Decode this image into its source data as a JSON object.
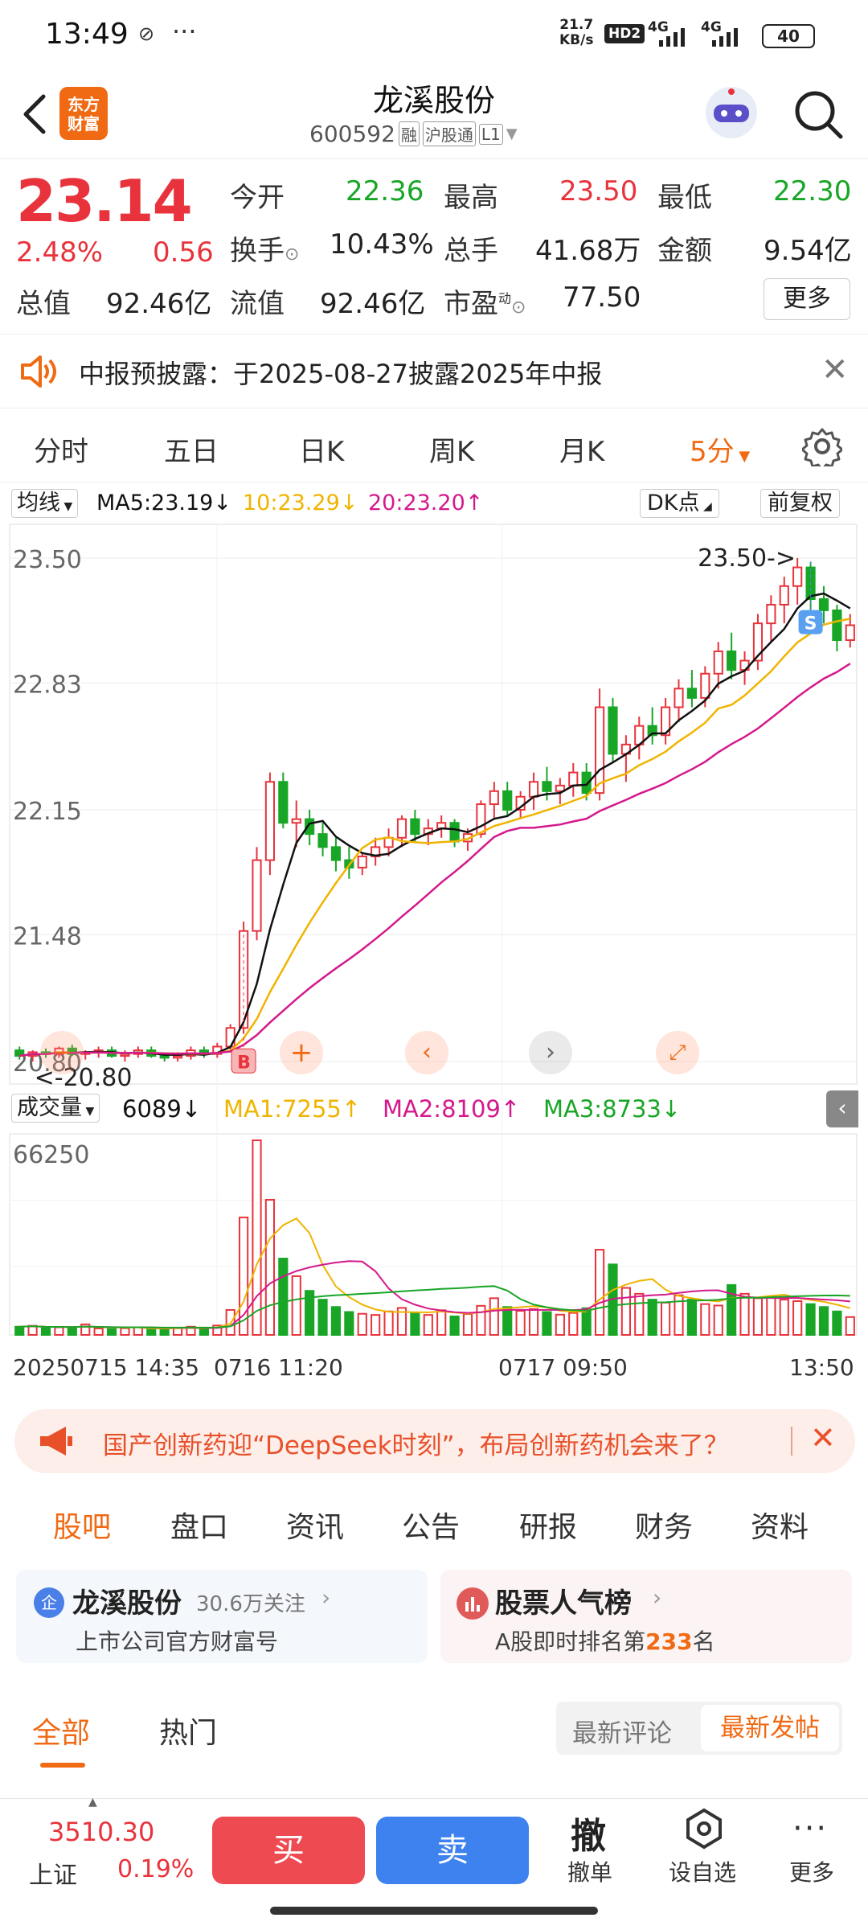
{
  "status": {
    "time": "13:49",
    "speed_value": "21.7",
    "speed_unit": "KB/s",
    "hd": "HD2",
    "net1": "4G",
    "net2": "4G",
    "battery": "40"
  },
  "nav": {
    "logo_line1": "东方",
    "logo_line2": "财富",
    "title": "龙溪股份",
    "code": "600592",
    "tag_rong": "融",
    "tag_hgt": "沪股通",
    "tag_l1": "L1"
  },
  "quote": {
    "price": "23.14",
    "pct": "2.48%",
    "change": "0.56",
    "open_label": "今开",
    "open": "22.36",
    "high_label": "最高",
    "high": "23.50",
    "low_label": "最低",
    "low": "22.30",
    "turnover_label": "换手",
    "turnover": "10.43%",
    "volume_label": "总手",
    "volume": "41.68万",
    "amount_label": "金额",
    "amount": "9.54亿",
    "mcap_label": "总值",
    "mcap": "92.46亿",
    "float_label": "流值",
    "float": "92.46亿",
    "pe_label": "市盈",
    "pe_sup": "动",
    "pe": "77.50",
    "more": "更多"
  },
  "notice": {
    "text": "中报预披露：于2025-08-27披露2025年中报"
  },
  "tabs": {
    "items": [
      "分时",
      "五日",
      "日K",
      "周K",
      "月K",
      "5分"
    ]
  },
  "chart_header": {
    "ma_select": "均线",
    "ma5": "MA5:23.19",
    "ma10": "10:23.29",
    "ma20": "20:23.20",
    "dk": "DK点",
    "fq": "前复权"
  },
  "vol_header": {
    "select": "成交量",
    "vol": "6089",
    "ma1": "MA1:7255",
    "ma2": "MA2:8109",
    "ma3": "MA3:8733"
  },
  "chart_data": {
    "type": "candlestick",
    "price_axis": {
      "ticks": [
        "23.50",
        "22.83",
        "22.15",
        "21.48",
        "20.80"
      ],
      "range": [
        20.8,
        23.5
      ]
    },
    "annotations": {
      "high": "23.50->",
      "low": "<-20.80",
      "buy": "B",
      "sell": "S"
    },
    "volume_axis": {
      "max_label": "66250",
      "range": [
        0,
        66250
      ]
    },
    "time_labels": [
      "20250715 14:35",
      "0716 11:20",
      "0717 09:50",
      "13:50"
    ],
    "candles_ohlc": [
      [
        20.86,
        20.88,
        20.81,
        20.83
      ],
      [
        20.83,
        20.86,
        20.8,
        20.85
      ],
      [
        20.85,
        20.87,
        20.82,
        20.84
      ],
      [
        20.84,
        20.88,
        20.82,
        20.87
      ],
      [
        20.87,
        20.89,
        20.83,
        20.84
      ],
      [
        20.84,
        20.86,
        20.81,
        20.85
      ],
      [
        20.85,
        20.88,
        20.82,
        20.86
      ],
      [
        20.86,
        20.88,
        20.82,
        20.83
      ],
      [
        20.83,
        20.86,
        20.8,
        20.84
      ],
      [
        20.84,
        20.88,
        20.82,
        20.86
      ],
      [
        20.86,
        20.88,
        20.82,
        20.83
      ],
      [
        20.83,
        20.85,
        20.8,
        20.82
      ],
      [
        20.82,
        20.85,
        20.8,
        20.83
      ],
      [
        20.83,
        20.88,
        20.81,
        20.86
      ],
      [
        20.86,
        20.88,
        20.82,
        20.84
      ],
      [
        20.84,
        20.9,
        20.82,
        20.88
      ],
      [
        20.88,
        21.0,
        20.85,
        20.98
      ],
      [
        20.98,
        21.55,
        20.95,
        21.5
      ],
      [
        21.5,
        21.95,
        21.45,
        21.88
      ],
      [
        21.88,
        22.35,
        21.8,
        22.3
      ],
      [
        22.3,
        22.35,
        22.05,
        22.08
      ],
      [
        22.08,
        22.2,
        21.95,
        22.1
      ],
      [
        22.1,
        22.15,
        21.96,
        22.02
      ],
      [
        22.02,
        22.08,
        21.9,
        21.95
      ],
      [
        21.95,
        22.0,
        21.82,
        21.88
      ],
      [
        21.88,
        21.95,
        21.78,
        21.84
      ],
      [
        21.84,
        21.92,
        21.8,
        21.9
      ],
      [
        21.9,
        22.0,
        21.85,
        21.95
      ],
      [
        21.95,
        22.05,
        21.9,
        22.0
      ],
      [
        22.0,
        22.12,
        21.95,
        22.1
      ],
      [
        22.1,
        22.15,
        21.98,
        22.02
      ],
      [
        22.02,
        22.1,
        21.96,
        22.05
      ],
      [
        22.05,
        22.12,
        22.0,
        22.08
      ],
      [
        22.08,
        22.1,
        21.95,
        21.98
      ],
      [
        21.98,
        22.05,
        21.93,
        22.02
      ],
      [
        22.02,
        22.2,
        22.0,
        22.18
      ],
      [
        22.18,
        22.3,
        22.1,
        22.25
      ],
      [
        22.25,
        22.3,
        22.12,
        22.15
      ],
      [
        22.15,
        22.25,
        22.1,
        22.22
      ],
      [
        22.22,
        22.35,
        22.15,
        22.3
      ],
      [
        22.3,
        22.38,
        22.2,
        22.25
      ],
      [
        22.25,
        22.32,
        22.18,
        22.28
      ],
      [
        22.28,
        22.4,
        22.22,
        22.35
      ],
      [
        22.35,
        22.4,
        22.2,
        22.24
      ],
      [
        22.24,
        22.8,
        22.2,
        22.7
      ],
      [
        22.7,
        22.75,
        22.4,
        22.45
      ],
      [
        22.45,
        22.55,
        22.3,
        22.5
      ],
      [
        22.5,
        22.65,
        22.42,
        22.6
      ],
      [
        22.6,
        22.7,
        22.5,
        22.55
      ],
      [
        22.55,
        22.75,
        22.5,
        22.7
      ],
      [
        22.7,
        22.85,
        22.62,
        22.8
      ],
      [
        22.8,
        22.9,
        22.7,
        22.75
      ],
      [
        22.75,
        22.92,
        22.7,
        22.88
      ],
      [
        22.88,
        23.05,
        22.8,
        23.0
      ],
      [
        23.0,
        23.1,
        22.85,
        22.9
      ],
      [
        22.9,
        23.0,
        22.82,
        22.95
      ],
      [
        22.95,
        23.2,
        22.9,
        23.15
      ],
      [
        23.15,
        23.3,
        23.05,
        23.25
      ],
      [
        23.25,
        23.4,
        23.15,
        23.35
      ],
      [
        23.35,
        23.5,
        23.25,
        23.45
      ],
      [
        23.45,
        23.48,
        23.2,
        23.28
      ],
      [
        23.28,
        23.35,
        23.15,
        23.22
      ],
      [
        23.22,
        23.25,
        23.0,
        23.06
      ],
      [
        23.06,
        23.2,
        23.02,
        23.14
      ]
    ],
    "volumes": [
      2800,
      3100,
      2400,
      2600,
      2500,
      3600,
      2200,
      2000,
      2300,
      2600,
      2100,
      1900,
      2400,
      2800,
      2200,
      3200,
      8500,
      40000,
      66250,
      46000,
      26000,
      20000,
      15000,
      12000,
      9500,
      7800,
      7200,
      6800,
      8000,
      9200,
      7500,
      6800,
      8400,
      6300,
      7100,
      9900,
      12500,
      9500,
      8200,
      8800,
      7800,
      6900,
      7500,
      9100,
      29000,
      24000,
      16000,
      14000,
      12000,
      11000,
      13500,
      12000,
      10500,
      10000,
      17000,
      14000,
      12500,
      13000,
      12000,
      11500,
      10500,
      9500,
      8000,
      6089
    ],
    "ma_series": [
      {
        "name": "MA5",
        "color": "#111111"
      },
      {
        "name": "10",
        "color": "#f0b400"
      },
      {
        "name": "20",
        "color": "#d4198c"
      }
    ],
    "vol_ma_series": [
      {
        "name": "MA1",
        "color": "#f0b400"
      },
      {
        "name": "MA2",
        "color": "#d4198c"
      },
      {
        "name": "MA3",
        "color": "#19a627"
      }
    ]
  },
  "banner": {
    "text": "国产创新药迎“DeepSeek时刻”，布局创新药机会来了？"
  },
  "subtabs": {
    "items": [
      "股吧",
      "盘口",
      "资讯",
      "公告",
      "研报",
      "财务",
      "资料"
    ]
  },
  "cards": {
    "left_badge": "企",
    "left_title": "龙溪股份",
    "left_follow": "30.6万关注",
    "left_sub": "上市公司官方财富号",
    "right_title": "股票人气榜",
    "right_sub_pre": "A股即时排名第",
    "right_rank": "233",
    "right_sub_post": "名"
  },
  "filter": {
    "all": "全部",
    "hot": "热门",
    "latest_comment": "最新评论",
    "latest_post": "最新发帖"
  },
  "bottom": {
    "index_value": "3510.30",
    "index_name": "上证",
    "index_pct": "0.19%",
    "buy": "买",
    "sell": "卖",
    "cancel_icon": "撤",
    "cancel": "撤单",
    "watch": "设自选",
    "more": "更多"
  },
  "colors": {
    "up": "#e8333c",
    "down": "#19a627",
    "accent": "#f06a14",
    "sell_blue": "#3d82ee"
  }
}
